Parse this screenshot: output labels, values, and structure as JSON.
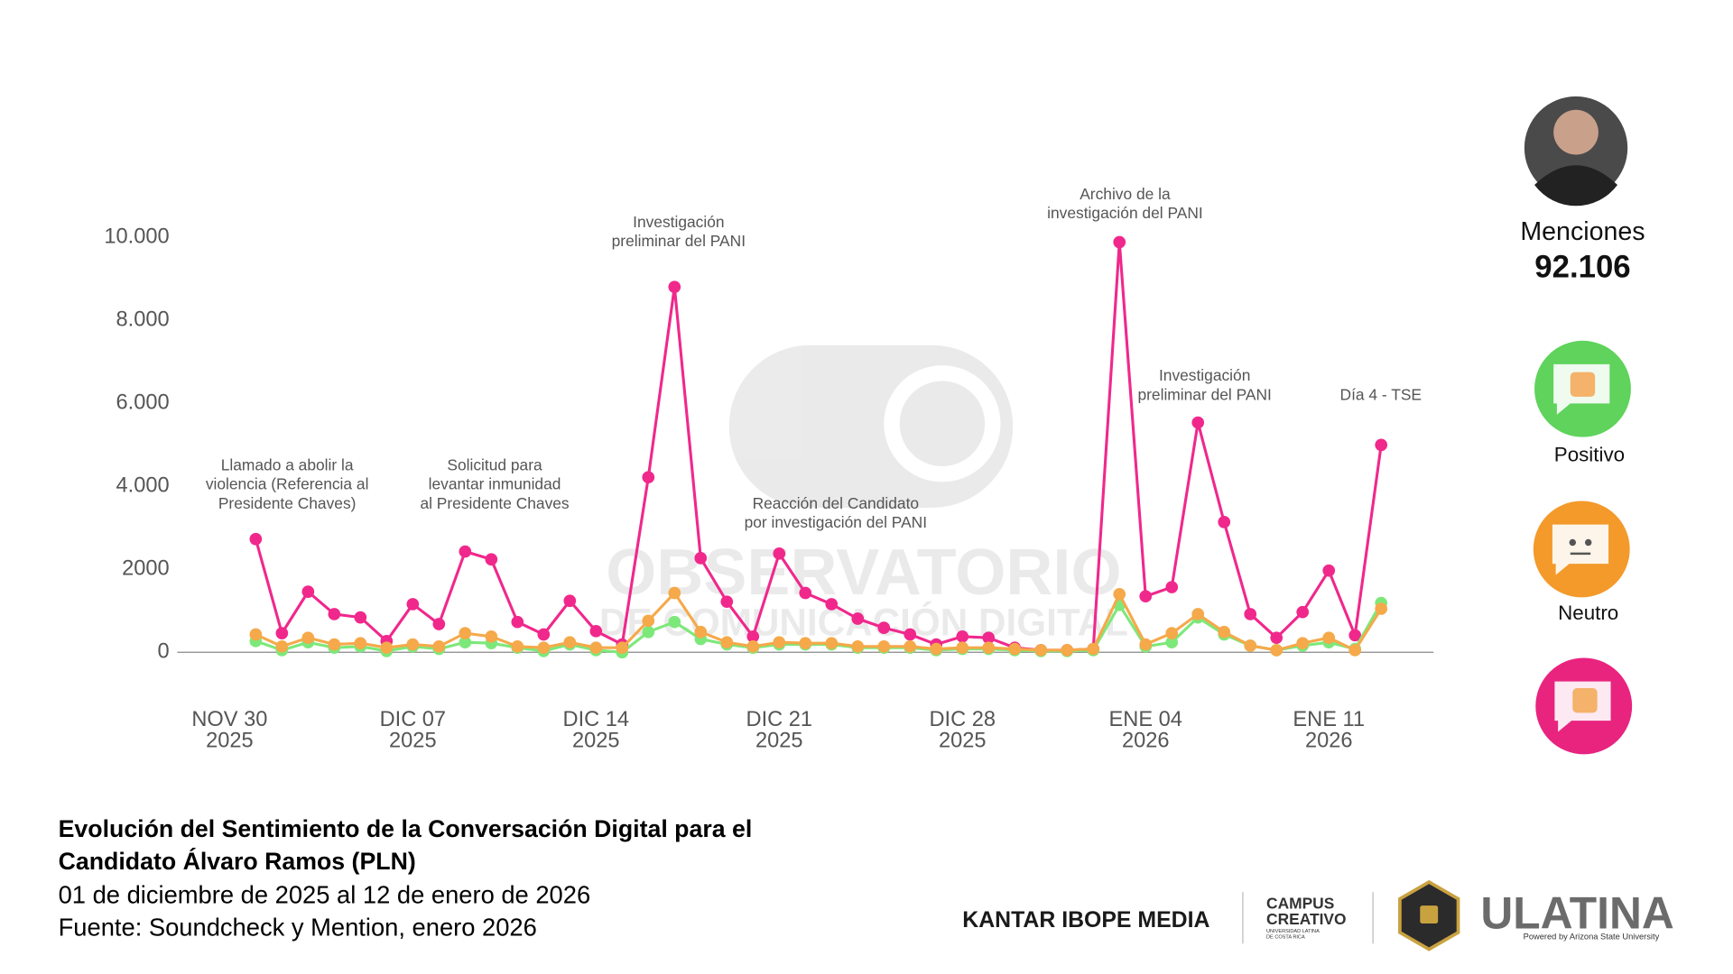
{
  "chart_data": {
    "type": "line",
    "x": [
      "2025-12-01",
      "2025-12-02",
      "2025-12-03",
      "2025-12-04",
      "2025-12-05",
      "2025-12-06",
      "2025-12-07",
      "2025-12-08",
      "2025-12-09",
      "2025-12-10",
      "2025-12-11",
      "2025-12-12",
      "2025-12-13",
      "2025-12-14",
      "2025-12-15",
      "2025-12-16",
      "2025-12-17",
      "2025-12-18",
      "2025-12-19",
      "2025-12-20",
      "2025-12-21",
      "2025-12-22",
      "2025-12-23",
      "2025-12-24",
      "2025-12-25",
      "2025-12-26",
      "2025-12-27",
      "2025-12-28",
      "2025-12-29",
      "2025-12-30",
      "2025-12-31",
      "2026-01-01",
      "2026-01-02",
      "2026-01-03",
      "2026-01-04",
      "2026-01-05",
      "2026-01-06",
      "2026-01-07",
      "2026-01-08",
      "2026-01-09",
      "2026-01-10",
      "2026-01-11",
      "2026-01-12",
      "2026-01-13"
    ],
    "series": [
      {
        "name": "Positivo",
        "color": "#7de87a",
        "values": [
          270,
          50,
          240,
          110,
          140,
          30,
          140,
          80,
          240,
          220,
          110,
          30,
          190,
          50,
          0,
          490,
          730,
          320,
          190,
          110,
          190,
          190,
          190,
          110,
          110,
          110,
          50,
          80,
          80,
          50,
          30,
          30,
          50,
          1140,
          140,
          240,
          840,
          430,
          160,
          50,
          160,
          240,
          80,
          1190
        ]
      },
      {
        "name": "Neutro",
        "color": "#f5a94a",
        "values": [
          430,
          140,
          350,
          190,
          220,
          110,
          190,
          140,
          460,
          380,
          140,
          110,
          240,
          110,
          110,
          760,
          1430,
          490,
          240,
          140,
          240,
          220,
          220,
          140,
          140,
          140,
          80,
          110,
          110,
          80,
          50,
          50,
          80,
          1400,
          190,
          460,
          920,
          490,
          160,
          50,
          220,
          350,
          50,
          1050
        ]
      },
      {
        "color": "#f0288c",
        "values": [
          2730,
          460,
          1460,
          920,
          840,
          270,
          1160,
          680,
          2430,
          2240,
          730,
          430,
          1240,
          510,
          190,
          4220,
          8810,
          2270,
          1220,
          380,
          2380,
          1430,
          1160,
          810,
          590,
          430,
          190,
          380,
          350,
          110,
          50,
          50,
          80,
          9890,
          1350,
          1570,
          5540,
          3140,
          920,
          350,
          970,
          1970,
          410,
          5000
        ]
      }
    ],
    "xlim": [
      "2025-11-28",
      "2026-01-15"
    ],
    "xticks": [
      {
        "value": "2025-11-30",
        "label": "NOV 30 2025"
      },
      {
        "value": "2025-12-07",
        "label": "DIC 07 2025"
      },
      {
        "value": "2025-12-14",
        "label": "DIC 14 2025"
      },
      {
        "value": "2025-12-21",
        "label": "DIC 21 2025"
      },
      {
        "value": "2025-12-28",
        "label": "DIC 28 2025"
      },
      {
        "value": "2026-01-04",
        "label": "ENE 04 2026"
      },
      {
        "value": "2026-01-11",
        "label": "ENE 11 2026"
      }
    ],
    "ylim": [
      0,
      10000
    ],
    "yticks": [
      {
        "value": 10000,
        "label": "10.000"
      },
      {
        "value": 8000,
        "label": "8.000"
      },
      {
        "value": 6000,
        "label": "6.000"
      },
      {
        "value": 4000,
        "label": "4.000"
      },
      2000,
      0
    ],
    "annotations": [
      {
        "text": [
          "Llamado a abolir la",
          "violencia (Referencia al",
          "Presidente Chaves)"
        ]
      },
      {
        "text": [
          "Solicitud para",
          "levantar inmunidad",
          "al Presidente Chaves"
        ]
      },
      {
        "text": [
          "Investigación",
          "preliminar del PANI"
        ]
      },
      {
        "text": [
          "Reacción del Candidato",
          "por investigación del PANI"
        ]
      },
      {
        "text": [
          "Archivo de la",
          "investigación del PANI"
        ]
      },
      {
        "text": [
          "Investigación",
          "preliminar del PANI"
        ]
      },
      {
        "text": [
          "Día 4 - TSE"
        ]
      }
    ]
  },
  "sidebar": {
    "label": "Menciones",
    "total": "92.106"
  },
  "watermark": [
    "OBSERVATORIO",
    "DE COMUNICACIÓN DIGITAL"
  ],
  "footer": {
    "title": [
      "Evolución del Sentimiento de la Conversación Digital para el",
      "Candidato Álvaro Ramos (PLN)"
    ],
    "subtitle": [
      "01 de diciembre de 2025 al 12 de enero de 2026",
      "Fuente: Soundcheck y Mention, enero 2026"
    ],
    "logos": {
      "kantar": "KANTAR IBOPE MEDIA",
      "campus": [
        "CAMPUS",
        "CREATIVO"
      ],
      "campus_sub": [
        "UNIVERSIDAD LATINA",
        "DE COSTA RICA"
      ],
      "ulatina": "ULATINA",
      "ulatina_sub": "Powered by Arizona State University"
    }
  }
}
